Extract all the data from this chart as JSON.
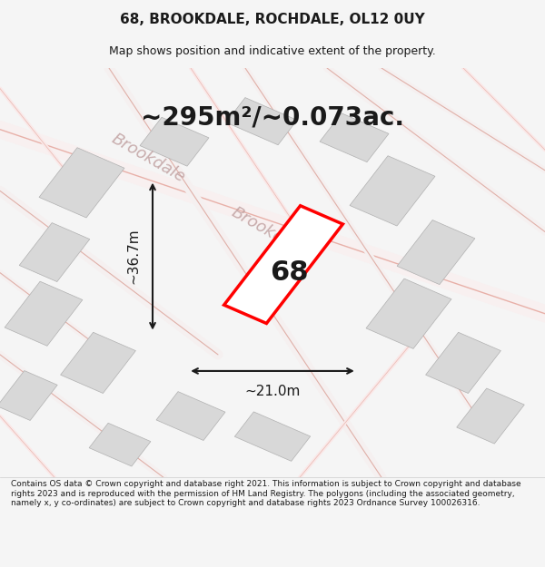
{
  "title": "68, BROOKDALE, ROCHDALE, OL12 0UY",
  "subtitle": "Map shows position and indicative extent of the property.",
  "area_label": "~295m²/~0.073ac.",
  "plot_number": "68",
  "dim_width": "~21.0m",
  "dim_height": "~36.7m",
  "footer": "Contains OS data © Crown copyright and database right 2021. This information is subject to Crown copyright and database rights 2023 and is reproduced with the permission of HM Land Registry. The polygons (including the associated geometry, namely x, y co-ordinates) are subject to Crown copyright and database rights 2023 Ordnance Survey 100026316.",
  "bg_color": "#f5f5f5",
  "map_bg": "#ffffff",
  "road_color_light": "#f5c0b8",
  "building_color": "#d8d8d8",
  "building_outline": "#b0b0b0",
  "plot_color": "red",
  "street_label_color": "#c0a0a0",
  "dim_color": "#1a1a1a",
  "title_fontsize": 11,
  "subtitle_fontsize": 9,
  "area_fontsize": 20,
  "plot_num_fontsize": 22,
  "dim_fontsize": 11,
  "street_fontsize": 13
}
